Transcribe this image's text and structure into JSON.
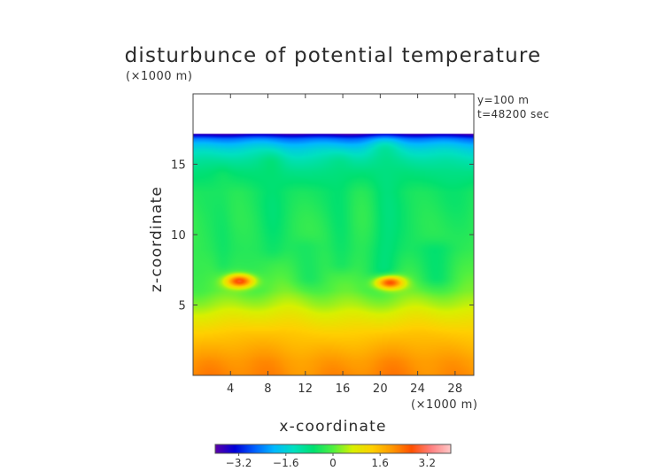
{
  "chart_data": {
    "type": "heatmap",
    "title": "disturbunce of potential temperature",
    "xlabel": "x-coordinate",
    "ylabel": "z-coordinate",
    "x_unit": "(×1000 m)",
    "y_unit": "(×1000 m)",
    "annotations": [
      "y=100 m",
      "t=48200 sec"
    ],
    "xlim": [
      0,
      30
    ],
    "ylim": [
      0,
      20
    ],
    "x_ticks": [
      4,
      8,
      12,
      16,
      20,
      24,
      28
    ],
    "y_ticks": [
      5,
      10,
      15
    ],
    "x_tick_labels": [
      "4",
      "8",
      "12",
      "16",
      "20",
      "24",
      "28"
    ],
    "y_tick_labels": [
      "5",
      "10",
      "15"
    ],
    "colorbar": {
      "range": [
        -4,
        4
      ],
      "ticks": [
        -3.2,
        -1.6,
        0,
        1.6,
        3.2
      ],
      "tick_labels": [
        "−3.2",
        "−1.6",
        "0",
        "1.6",
        "3.2"
      ],
      "colors": [
        "#5b00a8",
        "#0000d8",
        "#0060ff",
        "#00b8ff",
        "#00e0c0",
        "#00e070",
        "#50f040",
        "#d8f000",
        "#ffd000",
        "#ff9800",
        "#ff5000",
        "#ff8080",
        "#ffc8c8"
      ]
    },
    "data_top_z": 17.2,
    "field_profile": [
      {
        "z": 17.2,
        "value": -4.0
      },
      {
        "z": 17.0,
        "value": -3.2
      },
      {
        "z": 16.8,
        "value": -2.5
      },
      {
        "z": 16.4,
        "value": -1.9
      },
      {
        "z": 16.0,
        "value": -1.5
      },
      {
        "z": 15.3,
        "value": -1.1
      },
      {
        "z": 14.5,
        "value": -0.8
      },
      {
        "z": 13.0,
        "value": -0.45
      },
      {
        "z": 11.0,
        "value": -0.35
      },
      {
        "z": 9.0,
        "value": -0.3
      },
      {
        "z": 7.5,
        "value": -0.15
      },
      {
        "z": 6.0,
        "value": 0.05
      },
      {
        "z": 5.0,
        "value": 0.45
      },
      {
        "z": 4.0,
        "value": 0.95
      },
      {
        "z": 3.0,
        "value": 1.4
      },
      {
        "z": 2.0,
        "value": 1.7
      },
      {
        "z": 1.0,
        "value": 2.0
      },
      {
        "z": 0.0,
        "value": 2.15
      }
    ],
    "features": [
      {
        "kind": "warm_blob",
        "x": 5.0,
        "z": 6.7,
        "rx": 1.9,
        "rz": 0.6,
        "value": 2.9
      },
      {
        "kind": "warm_blob",
        "x": 21.0,
        "z": 6.6,
        "rx": 1.9,
        "rz": 0.6,
        "value": 2.9
      },
      {
        "kind": "cool_plume",
        "x": 20.5,
        "z_from": 7.5,
        "z_to": 16.0,
        "width": 1.6,
        "value": -0.95
      },
      {
        "kind": "cool_plume",
        "x": 15.8,
        "z_from": 8.0,
        "z_to": 15.0,
        "width": 1.4,
        "value": -0.75
      },
      {
        "kind": "cool_plume",
        "x": 8.5,
        "z_from": 9.0,
        "z_to": 15.0,
        "width": 1.3,
        "value": -0.6
      },
      {
        "kind": "cool_plume",
        "x": 3.2,
        "z_from": 8.0,
        "z_to": 14.0,
        "width": 1.0,
        "value": -0.55
      },
      {
        "kind": "cool_plume",
        "x": 26.0,
        "z_from": 7.0,
        "z_to": 8.8,
        "width": 2.0,
        "value": -0.9
      },
      {
        "kind": "cool_plume",
        "x": 12.2,
        "z_from": 7.0,
        "z_to": 9.0,
        "width": 1.8,
        "value": -0.7
      }
    ]
  }
}
